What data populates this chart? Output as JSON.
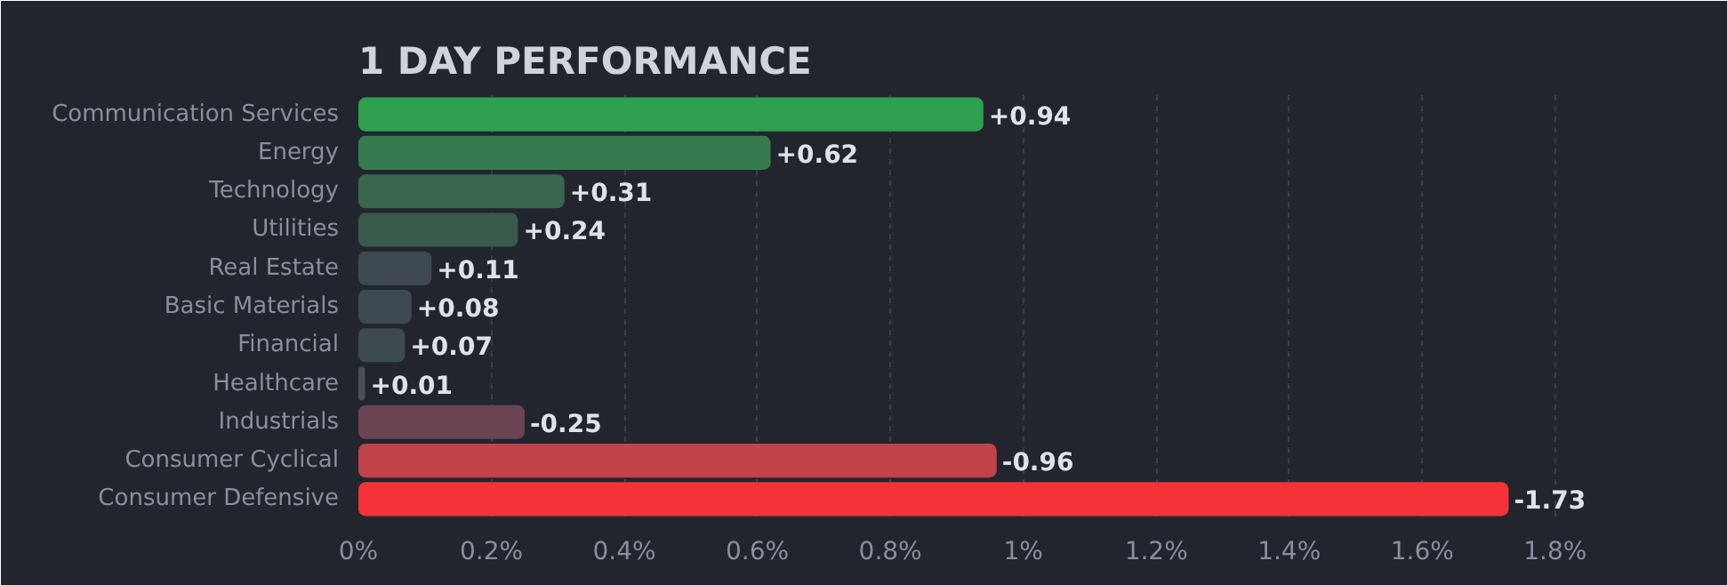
{
  "chart_data": {
    "type": "bar",
    "orientation": "horizontal",
    "title": "1 DAY PERFORMANCE",
    "categories": [
      "Communication Services",
      "Energy",
      "Technology",
      "Utilities",
      "Real Estate",
      "Basic Materials",
      "Financial",
      "Healthcare",
      "Industrials",
      "Consumer Cyclical",
      "Consumer Defensive"
    ],
    "values": [
      0.94,
      0.62,
      0.31,
      0.24,
      0.11,
      0.08,
      0.07,
      0.01,
      0.25,
      0.96,
      1.73
    ],
    "value_labels": [
      "+0.94",
      "+0.62",
      "+0.31",
      "+0.24",
      "+0.11",
      "+0.08",
      "+0.07",
      "+0.01",
      null,
      null,
      null
    ],
    "annotations": [
      {
        "text": "-0.25",
        "x": 0.25,
        "y": "Industrials"
      },
      {
        "text": "-0.96",
        "x": 0.96,
        "y": "Consumer Cyclical"
      },
      {
        "text": "-1.73",
        "x": 1.73,
        "y": "Consumer Defensive"
      }
    ],
    "colors": [
      "#2ea04f",
      "#347c50",
      "#3a6650",
      "#3a5a4c",
      "#3d4a52",
      "#3e4a52",
      "#3d4a50",
      "#4a5058",
      "#6a4452",
      "#c0434a",
      "#f43238"
    ],
    "xlim": [
      0,
      1.8
    ],
    "xticks": [
      {
        "value": 0,
        "label": "0%"
      },
      {
        "value": 0.2,
        "label": "0.2%"
      },
      {
        "value": 0.4,
        "label": "0.4%"
      },
      {
        "value": 0.6,
        "label": "0.6%"
      },
      {
        "value": 0.8,
        "label": "0.8%"
      },
      {
        "value": 1,
        "label": "1%"
      },
      {
        "value": 1.2,
        "label": "1.2%"
      },
      {
        "value": 1.4,
        "label": "1.4%"
      },
      {
        "value": 1.6,
        "label": "1.6%"
      },
      {
        "value": 1.8,
        "label": "1.8%"
      }
    ],
    "grid": "x",
    "legend": false
  }
}
